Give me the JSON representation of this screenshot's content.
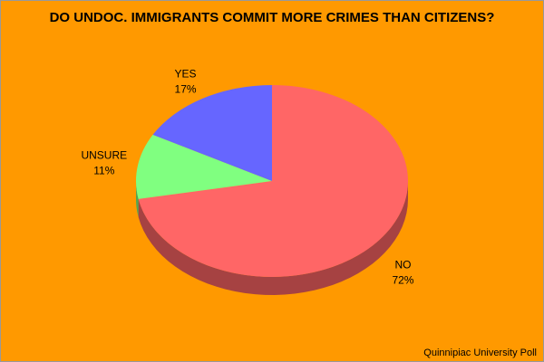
{
  "chart_data": {
    "type": "pie3d",
    "title": "DO UNDOC. IMMIGRANTS COMMIT MORE CRIMES THAN CITIZENS?",
    "source": "Quinnipiac University Poll",
    "categories": [
      "NO",
      "UNSURE",
      "YES"
    ],
    "values": [
      72,
      11,
      17
    ],
    "value_labels": [
      "72%",
      "11%",
      "17%"
    ],
    "colors": [
      "#ff6666",
      "#80ff80",
      "#6666ff"
    ],
    "background": "#ff9900"
  }
}
